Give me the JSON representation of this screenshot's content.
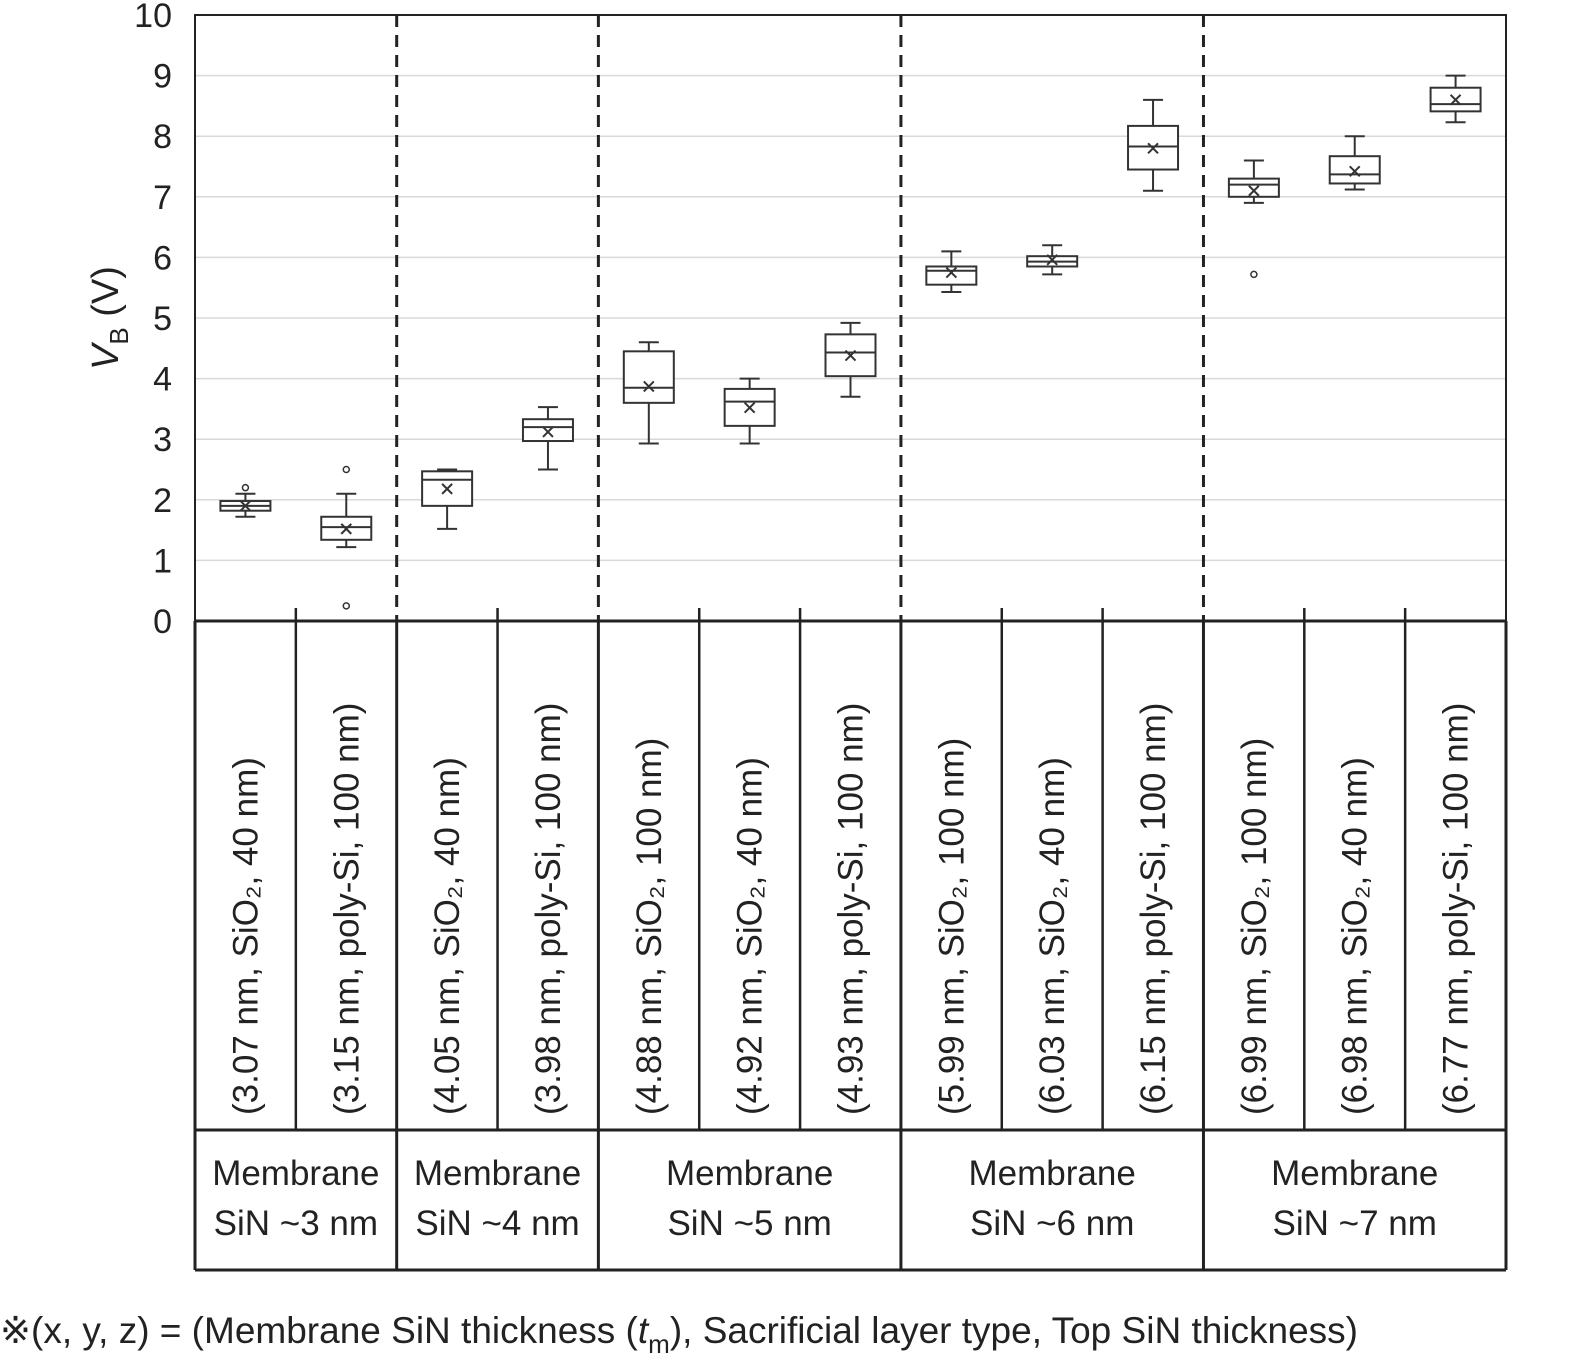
{
  "chart_data": {
    "type": "box",
    "y_label": {
      "symbol": "V",
      "subscript": "B",
      "unit": " (V)"
    },
    "categories": [
      "(3.07 nm, SiO₂, 40 nm)",
      "(3.15 nm, poly-Si, 100 nm)",
      "(4.05 nm, SiO₂, 40 nm)",
      "(3.98 nm, poly-Si, 100 nm)",
      "(4.88 nm, SiO₂, 100 nm)",
      "(4.92 nm, SiO₂, 40 nm)",
      "(4.93 nm, poly-Si, 100 nm)",
      "(5.99 nm, SiO₂, 100 nm)",
      "(6.03 nm, SiO₂, 40 nm)",
      "(6.15 nm, poly-Si, 100 nm)",
      "(6.99 nm, SiO₂, 100 nm)",
      "(6.98 nm, SiO₂, 40 nm)",
      "(6.77 nm, poly-Si, 100 nm)"
    ],
    "groups": [
      {
        "lines": [
          "Membrane",
          "SiN ~3 nm"
        ],
        "size": 2
      },
      {
        "lines": [
          "Membrane",
          "SiN ~4 nm"
        ],
        "size": 2
      },
      {
        "lines": [
          "Membrane",
          "SiN ~5 nm"
        ],
        "size": 3
      },
      {
        "lines": [
          "Membrane",
          "SiN ~6 nm"
        ],
        "size": 3
      },
      {
        "lines": [
          "Membrane",
          "SiN ~7 nm"
        ],
        "size": 3
      }
    ],
    "boxes": [
      {
        "min": 1.72,
        "q1": 1.82,
        "median": 1.9,
        "q3": 1.98,
        "max": 2.1,
        "mean": 1.9,
        "outliers": [
          2.2
        ]
      },
      {
        "min": 1.22,
        "q1": 1.34,
        "median": 1.55,
        "q3": 1.72,
        "max": 2.1,
        "mean": 1.52,
        "outliers": [
          2.5,
          0.25
        ]
      },
      {
        "min": 1.52,
        "q1": 1.9,
        "median": 2.33,
        "q3": 2.47,
        "max": 2.5,
        "mean": 2.18,
        "outliers": []
      },
      {
        "min": 2.5,
        "q1": 2.97,
        "median": 3.2,
        "q3": 3.33,
        "max": 3.53,
        "mean": 3.12,
        "outliers": []
      },
      {
        "min": 2.93,
        "q1": 3.6,
        "median": 3.85,
        "q3": 4.45,
        "max": 4.6,
        "mean": 3.87,
        "outliers": []
      },
      {
        "min": 2.93,
        "q1": 3.22,
        "median": 3.62,
        "q3": 3.83,
        "max": 4.0,
        "mean": 3.52,
        "outliers": []
      },
      {
        "min": 3.7,
        "q1": 4.04,
        "median": 4.43,
        "q3": 4.73,
        "max": 4.92,
        "mean": 4.38,
        "outliers": []
      },
      {
        "min": 5.43,
        "q1": 5.55,
        "median": 5.78,
        "q3": 5.85,
        "max": 6.1,
        "mean": 5.75,
        "outliers": []
      },
      {
        "min": 5.72,
        "q1": 5.85,
        "median": 5.93,
        "q3": 6.02,
        "max": 6.2,
        "mean": 5.96,
        "outliers": []
      },
      {
        "min": 7.1,
        "q1": 7.45,
        "median": 7.83,
        "q3": 8.17,
        "max": 8.6,
        "mean": 7.8,
        "outliers": []
      },
      {
        "min": 6.9,
        "q1": 7.0,
        "median": 7.2,
        "q3": 7.3,
        "max": 7.6,
        "mean": 7.1,
        "outliers": [
          5.72
        ]
      },
      {
        "min": 7.12,
        "q1": 7.22,
        "median": 7.37,
        "q3": 7.67,
        "max": 8.0,
        "mean": 7.42,
        "outliers": []
      },
      {
        "min": 8.23,
        "q1": 8.41,
        "median": 8.53,
        "q3": 8.8,
        "max": 9.0,
        "mean": 8.6,
        "outliers": []
      }
    ],
    "color": "#333333",
    "ylim": [
      0,
      10
    ],
    "yticks": [
      0,
      1,
      2,
      3,
      4,
      5,
      6,
      7,
      8,
      9,
      10
    ],
    "grid": true,
    "footnote": {
      "before": "※(x, y, z) = (Membrane SiN thickness (",
      "symbol": "t",
      "subscript": "m",
      "after": "), Sacrificial layer type, Top SiN thickness)"
    }
  }
}
